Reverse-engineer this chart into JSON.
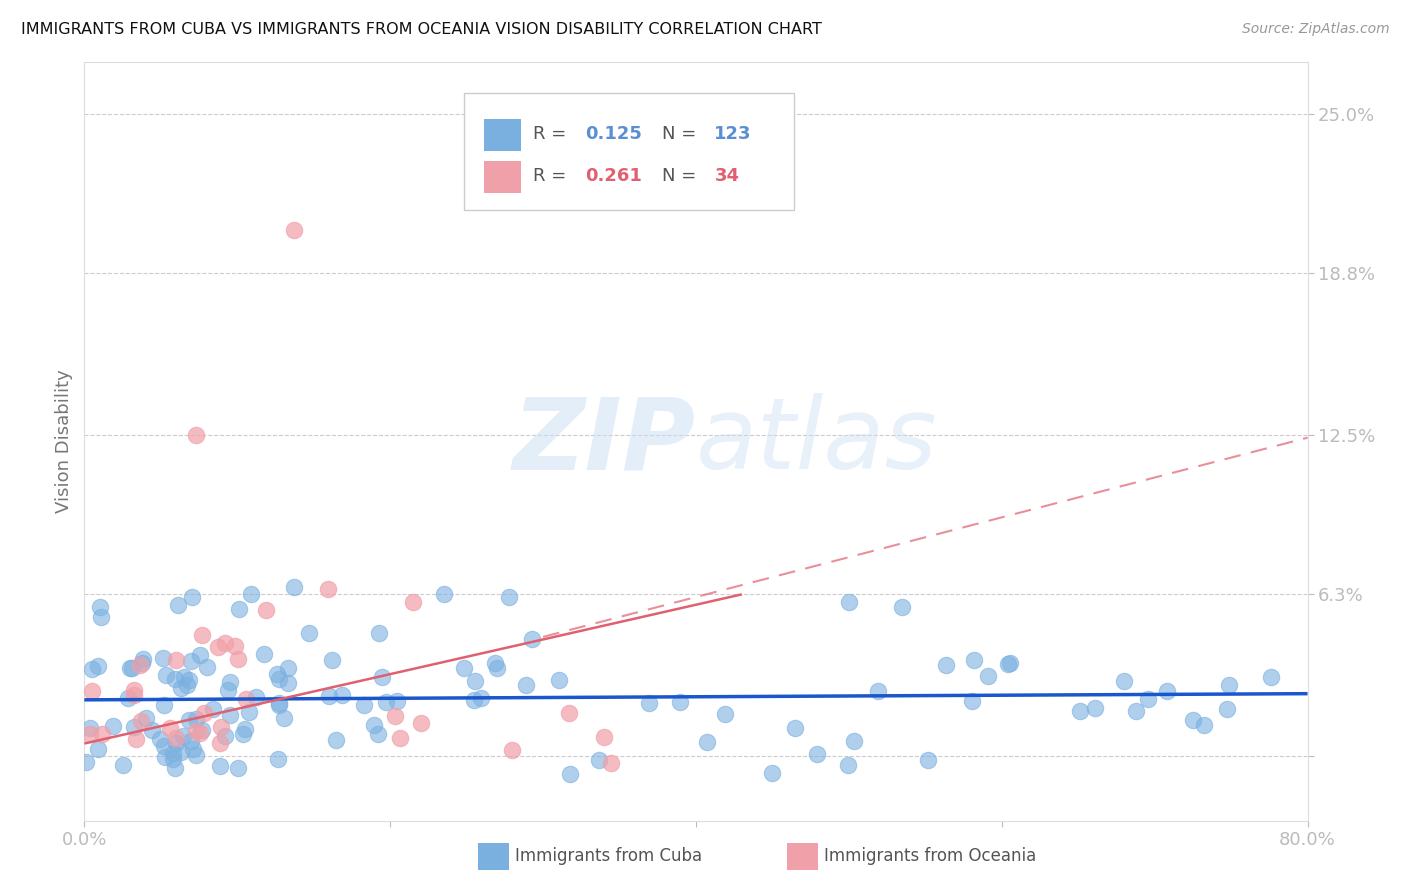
{
  "title": "IMMIGRANTS FROM CUBA VS IMMIGRANTS FROM OCEANIA VISION DISABILITY CORRELATION CHART",
  "source": "Source: ZipAtlas.com",
  "ylabel": "Vision Disability",
  "xlim": [
    0.0,
    0.8
  ],
  "ylim": [
    -0.025,
    0.27
  ],
  "ytick_vals": [
    0.0,
    0.063,
    0.125,
    0.188,
    0.25
  ],
  "ytick_labels": [
    "",
    "6.3%",
    "12.5%",
    "18.8%",
    "25.0%"
  ],
  "xtick_vals": [
    0.0,
    0.2,
    0.4,
    0.6,
    0.8
  ],
  "xtick_labels": [
    "0.0%",
    "",
    "",
    "",
    "80.0%"
  ],
  "cuba_R": 0.125,
  "cuba_N": 123,
  "oceania_R": 0.261,
  "oceania_N": 34,
  "cuba_color": "#7ab0e0",
  "oceania_color": "#f0a0a8",
  "cuba_line_color": "#1a56cc",
  "oceania_line_color": "#e06070",
  "axis_label_color": "#5b8fd4",
  "watermark": "ZIPatlas",
  "background_color": "#ffffff",
  "legend_box_color": "#cccccc",
  "grid_color": "#cccccc",
  "title_fontsize": 11.5,
  "tick_fontsize": 13,
  "ylabel_fontsize": 13,
  "cuba_line_slope": 0.003,
  "cuba_line_intercept": 0.022,
  "oceania_line_slope": 0.135,
  "oceania_line_intercept": 0.005,
  "oceania_dash_slope": 0.155,
  "oceania_dash_intercept": 0.0
}
